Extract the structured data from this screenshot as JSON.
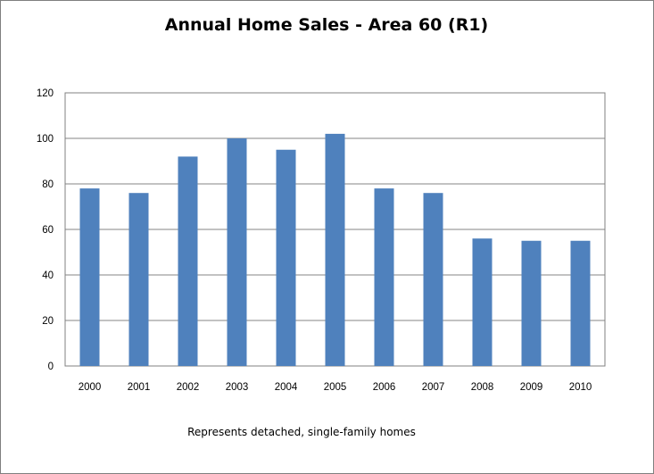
{
  "chart_data": {
    "type": "bar",
    "title": "Annual Home Sales - Area 60 (R1)",
    "note": "Represents detached, single-family homes",
    "categories": [
      "2000",
      "2001",
      "2002",
      "2003",
      "2004",
      "2005",
      "2006",
      "2007",
      "2008",
      "2009",
      "2010"
    ],
    "values": [
      78,
      76,
      92,
      100,
      95,
      102,
      78,
      76,
      56,
      55,
      55
    ],
    "ylim": [
      0,
      120
    ],
    "yticks": [
      0,
      20,
      40,
      60,
      80,
      100,
      120
    ],
    "grid": true,
    "legend": "none",
    "bar_color": "#4f81bd"
  }
}
